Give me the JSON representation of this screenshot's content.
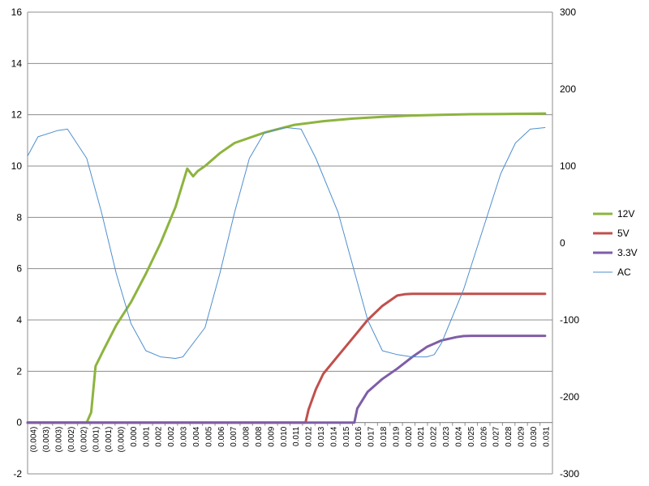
{
  "chart_data": {
    "type": "line",
    "title": "",
    "xlabel": "",
    "ylabel": "",
    "y2label": "",
    "grid": true,
    "legend_position": "right",
    "ylim": [
      -2,
      16
    ],
    "yticks": [
      -2,
      0,
      2,
      4,
      6,
      8,
      10,
      12,
      14,
      16
    ],
    "y2lim": [
      -300,
      300
    ],
    "y2ticks": [
      -300,
      -200,
      -100,
      0,
      100,
      200,
      300
    ],
    "x_categories": [
      "(0.004)",
      "(0.003)",
      "(0.003)",
      "(0.002)",
      "(0.002)",
      "(0.001)",
      "(0.001)",
      "(0.000)",
      "0.000",
      "0.001",
      "0.002",
      "0.002",
      "0.003",
      "0.004",
      "0.005",
      "0.006",
      "0.007",
      "0.008",
      "0.008",
      "0.009",
      "0.010",
      "0.011",
      "0.012",
      "0.013",
      "0.014",
      "0.015",
      "0.016",
      "0.017",
      "0.018",
      "0.019",
      "0.020",
      "0.021",
      "0.022",
      "0.023",
      "0.024",
      "0.025",
      "0.026",
      "0.027",
      "0.028",
      "0.029",
      "0.030",
      "0.031"
    ],
    "series": [
      {
        "name": "12V",
        "axis": "primary",
        "color": "#8db43e",
        "x": [
          -0.004,
          0.0,
          0.0003,
          0.0006,
          0.0012,
          0.002,
          0.003,
          0.004,
          0.005,
          0.006,
          0.0068,
          0.0072,
          0.0075,
          0.008,
          0.009,
          0.01,
          0.012,
          0.014,
          0.016,
          0.018,
          0.02,
          0.022,
          0.024,
          0.026,
          0.028,
          0.03,
          0.031
        ],
        "values": [
          0.0,
          0.0,
          0.4,
          2.2,
          2.9,
          3.8,
          4.7,
          5.8,
          7.0,
          8.4,
          9.9,
          9.6,
          9.8,
          10.0,
          10.5,
          10.9,
          11.3,
          11.6,
          11.75,
          11.85,
          11.92,
          11.97,
          12.0,
          12.02,
          12.03,
          12.04,
          12.05
        ]
      },
      {
        "name": "5V",
        "axis": "primary",
        "color": "#c0504d",
        "x": [
          -0.004,
          0.0148,
          0.015,
          0.0155,
          0.016,
          0.017,
          0.018,
          0.019,
          0.02,
          0.021,
          0.0215,
          0.022,
          0.024,
          0.026,
          0.028,
          0.031
        ],
        "values": [
          0.0,
          0.0,
          0.5,
          1.3,
          1.9,
          2.6,
          3.3,
          4.0,
          4.55,
          4.95,
          5.0,
          5.02,
          5.02,
          5.02,
          5.02,
          5.02
        ]
      },
      {
        "name": "3.3V",
        "axis": "primary",
        "color": "#7f5da6",
        "x": [
          -0.004,
          0.0181,
          0.0183,
          0.019,
          0.02,
          0.021,
          0.022,
          0.023,
          0.024,
          0.025,
          0.0255,
          0.026,
          0.028,
          0.031
        ],
        "values": [
          0.0,
          0.0,
          0.55,
          1.2,
          1.7,
          2.1,
          2.55,
          2.95,
          3.2,
          3.33,
          3.37,
          3.38,
          3.38,
          3.38
        ]
      },
      {
        "name": "AC",
        "axis": "secondary",
        "color": "#4f8fcf",
        "x": [
          -0.004,
          -0.0033,
          -0.002,
          -0.0013,
          0.0,
          0.001,
          0.002,
          0.003,
          0.004,
          0.005,
          0.006,
          0.0065,
          0.008,
          0.009,
          0.01,
          0.011,
          0.012,
          0.013,
          0.0135,
          0.0145,
          0.0155,
          0.017,
          0.018,
          0.019,
          0.02,
          0.021,
          0.022,
          0.023,
          0.0235,
          0.024,
          0.0255,
          0.027,
          0.028,
          0.029,
          0.03,
          0.031
        ],
        "values": [
          113,
          138,
          146,
          148,
          110,
          40,
          -40,
          -105,
          -140,
          -148,
          -150,
          -148,
          -110,
          -40,
          40,
          110,
          143,
          148,
          150,
          148,
          110,
          40,
          -30,
          -100,
          -140,
          -145,
          -148,
          -148,
          -145,
          -130,
          -60,
          30,
          90,
          130,
          148,
          150
        ]
      }
    ]
  }
}
